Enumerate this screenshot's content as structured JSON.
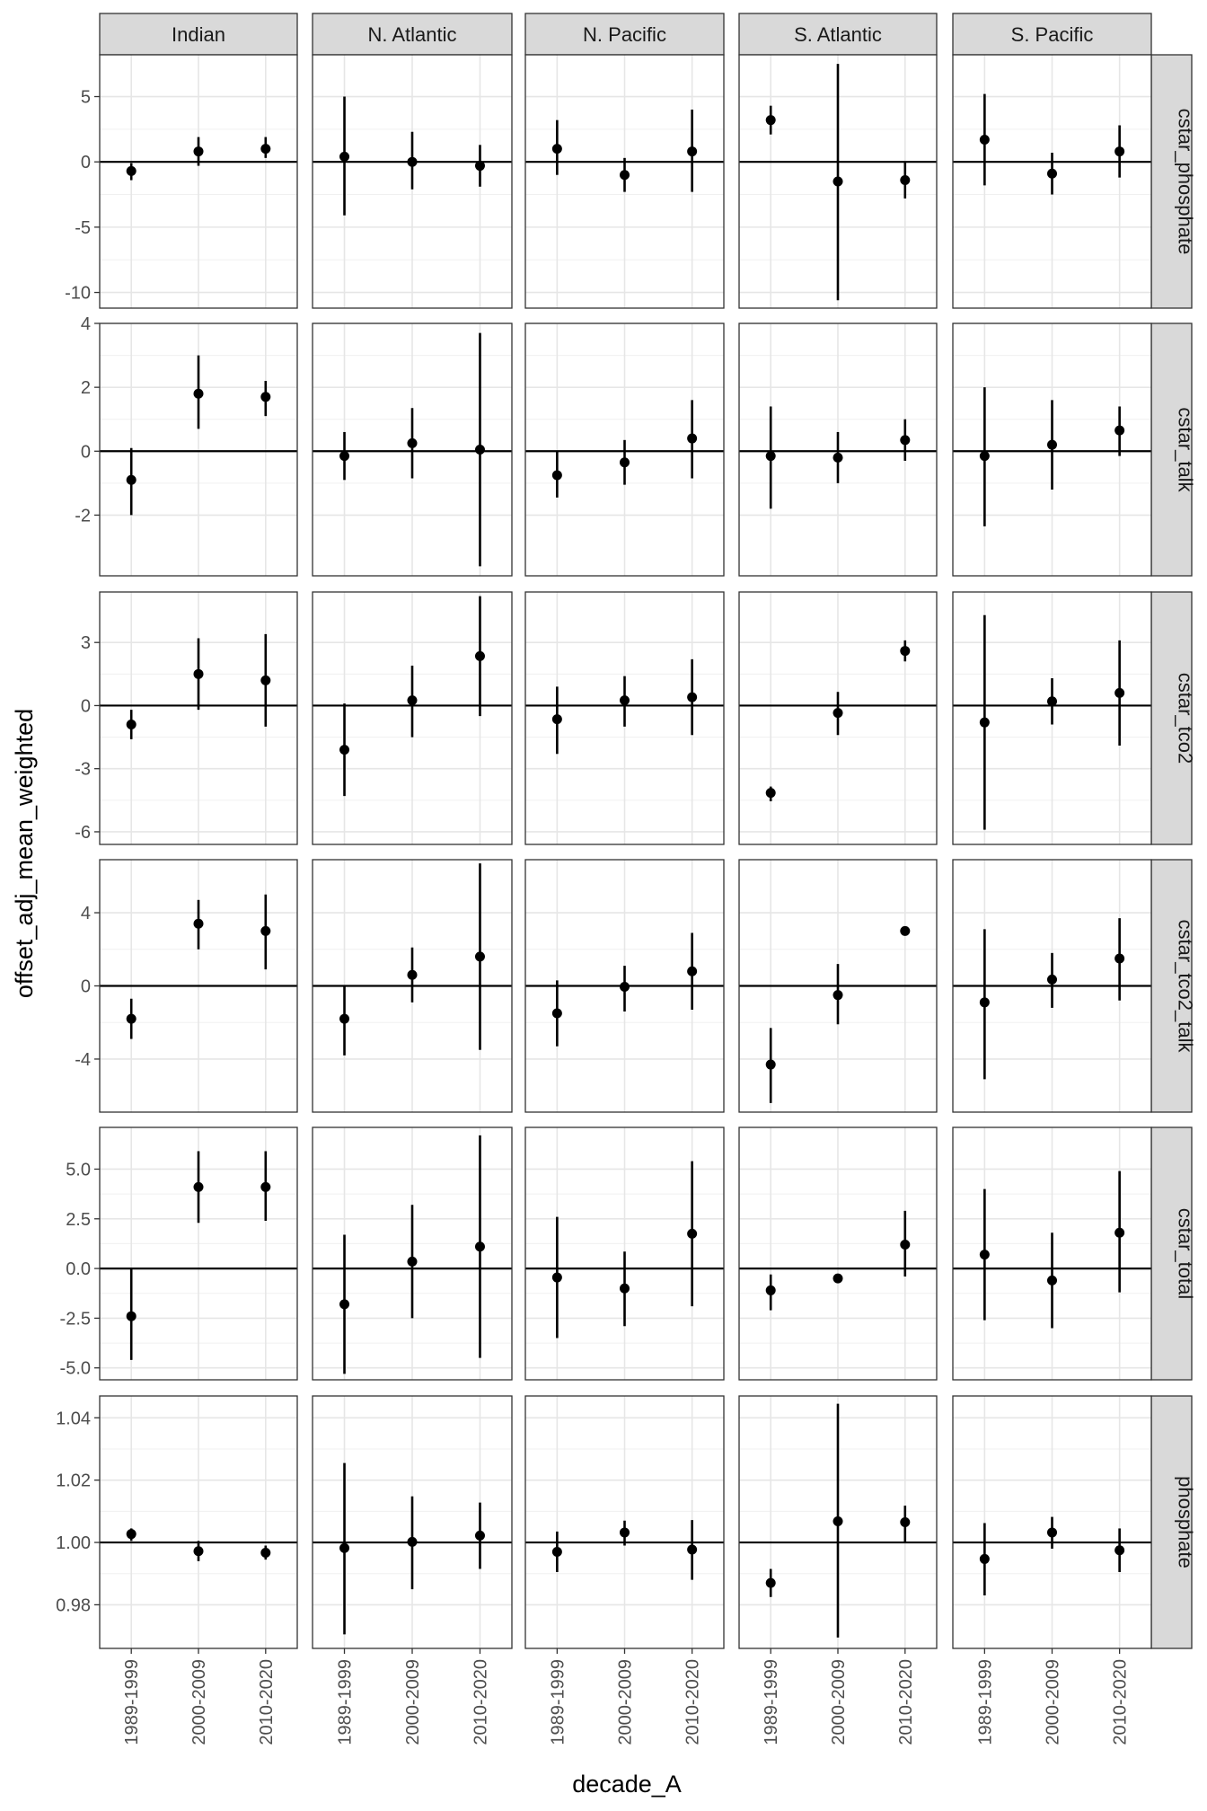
{
  "chart_data": {
    "type": "faceted-pointrange",
    "xlabel": "decade_A",
    "ylabel": "offset_adj_mean_weighted",
    "categories": [
      "1989-1999",
      "2000-2009",
      "2010-2020"
    ],
    "columns": [
      "Indian",
      "N. Atlantic",
      "N. Pacific",
      "S. Atlantic",
      "S. Pacific"
    ],
    "grid": true,
    "reference_line": "horizontal at 0 (rows 1-5) and at 1 (phosphate)",
    "rows": [
      {
        "name": "cstar_phosphate",
        "ylim": [
          -11.2,
          8.2
        ],
        "yticks": [
          -10,
          -5,
          0,
          5
        ],
        "ytick_labels": [
          "-10",
          "-5",
          "0",
          "5"
        ],
        "ref": 0,
        "panels": [
          [
            [
              -0.7,
              -1.4,
              -0.1
            ],
            [
              0.8,
              -0.3,
              1.9
            ],
            [
              1.0,
              0.3,
              1.9
            ]
          ],
          [
            [
              0.4,
              -4.1,
              5.0
            ],
            [
              0.0,
              -2.1,
              2.3
            ],
            [
              -0.3,
              -1.9,
              1.3
            ]
          ],
          [
            [
              1.0,
              -1.0,
              3.2
            ],
            [
              -1.0,
              -2.3,
              0.3
            ],
            [
              0.8,
              -2.3,
              4.0
            ]
          ],
          [
            [
              3.2,
              2.1,
              4.3
            ],
            [
              -1.5,
              -10.6,
              7.5
            ],
            [
              -1.4,
              -2.8,
              0.0
            ]
          ],
          [
            [
              1.7,
              -1.8,
              5.2
            ],
            [
              -0.9,
              -2.5,
              0.7
            ],
            [
              0.8,
              -1.2,
              2.8
            ]
          ]
        ]
      },
      {
        "name": "cstar_talk",
        "ylim": [
          -3.9,
          4.0
        ],
        "yticks": [
          -2,
          0,
          2,
          4
        ],
        "ytick_labels": [
          "-2",
          "0",
          "2",
          "4"
        ],
        "ref": 0,
        "panels": [
          [
            [
              -0.9,
              -2.0,
              0.1
            ],
            [
              1.8,
              0.7,
              3.0
            ],
            [
              1.7,
              1.1,
              2.2
            ]
          ],
          [
            [
              -0.15,
              -0.9,
              0.6
            ],
            [
              0.25,
              -0.85,
              1.35
            ],
            [
              0.05,
              -3.6,
              3.7
            ]
          ],
          [
            [
              -0.75,
              -1.45,
              0.0
            ],
            [
              -0.35,
              -1.05,
              0.35
            ],
            [
              0.4,
              -0.85,
              1.6
            ]
          ],
          [
            [
              -0.15,
              -1.8,
              1.4
            ],
            [
              -0.2,
              -1.0,
              0.6
            ],
            [
              0.35,
              -0.3,
              1.0
            ]
          ],
          [
            [
              -0.15,
              -2.35,
              2.0
            ],
            [
              0.2,
              -1.2,
              1.6
            ],
            [
              0.65,
              -0.15,
              1.4
            ]
          ]
        ]
      },
      {
        "name": "cstar_tco2",
        "ylim": [
          -6.6,
          5.4
        ],
        "yticks": [
          -6,
          -3,
          0,
          3
        ],
        "ytick_labels": [
          "-6",
          "-3",
          "0",
          "3"
        ],
        "ref": 0,
        "panels": [
          [
            [
              -0.9,
              -1.6,
              -0.2
            ],
            [
              1.5,
              -0.2,
              3.2
            ],
            [
              1.2,
              -1.0,
              3.4
            ]
          ],
          [
            [
              -2.1,
              -4.3,
              0.1
            ],
            [
              0.25,
              -1.5,
              1.9
            ],
            [
              2.35,
              -0.5,
              5.2
            ]
          ],
          [
            [
              -0.65,
              -2.3,
              0.9
            ],
            [
              0.25,
              -1.0,
              1.4
            ],
            [
              0.4,
              -1.4,
              2.2
            ]
          ],
          [
            [
              -4.15,
              -4.55,
              -3.85
            ],
            [
              -0.35,
              -1.4,
              0.65
            ],
            [
              2.6,
              2.1,
              3.1
            ]
          ],
          [
            [
              -0.8,
              -5.9,
              4.3
            ],
            [
              0.2,
              -0.9,
              1.3
            ],
            [
              0.6,
              -1.9,
              3.1
            ]
          ]
        ]
      },
      {
        "name": "cstar_tco2_talk",
        "ylim": [
          -6.9,
          6.9
        ],
        "yticks": [
          -4,
          0,
          4
        ],
        "ytick_labels": [
          "-4",
          "0",
          "4"
        ],
        "ref": 0,
        "panels": [
          [
            [
              -1.8,
              -2.9,
              -0.7
            ],
            [
              3.4,
              2.0,
              4.7
            ],
            [
              3.0,
              0.9,
              5.0
            ]
          ],
          [
            [
              -1.8,
              -3.8,
              0.0
            ],
            [
              0.6,
              -0.9,
              2.1
            ],
            [
              1.6,
              -3.5,
              6.7
            ]
          ],
          [
            [
              -1.5,
              -3.3,
              0.3
            ],
            [
              -0.05,
              -1.4,
              1.1
            ],
            [
              0.8,
              -1.3,
              2.9
            ]
          ],
          [
            [
              -4.3,
              -6.4,
              -2.3
            ],
            [
              -0.5,
              -2.1,
              1.2
            ],
            [
              3.0,
              3.0,
              3.0
            ]
          ],
          [
            [
              -0.9,
              -5.1,
              3.1
            ],
            [
              0.35,
              -1.2,
              1.8
            ],
            [
              1.5,
              -0.8,
              3.7
            ]
          ]
        ]
      },
      {
        "name": "cstar_total",
        "ylim": [
          -5.6,
          7.1
        ],
        "yticks": [
          -5,
          -2.5,
          0,
          2.5,
          5
        ],
        "ytick_labels": [
          "-5.0",
          "-2.5",
          "0.0",
          "2.5",
          "5.0"
        ],
        "ref": 0,
        "panels": [
          [
            [
              -2.4,
              -4.6,
              0.0
            ],
            [
              4.1,
              2.3,
              5.9
            ],
            [
              4.1,
              2.4,
              5.9
            ]
          ],
          [
            [
              -1.8,
              -5.3,
              1.7
            ],
            [
              0.35,
              -2.5,
              3.2
            ],
            [
              1.1,
              -4.5,
              6.7
            ]
          ],
          [
            [
              -0.45,
              -3.5,
              2.6
            ],
            [
              -1.0,
              -2.9,
              0.85
            ],
            [
              1.75,
              -1.9,
              5.4
            ]
          ],
          [
            [
              -1.1,
              -2.1,
              -0.3
            ],
            [
              -0.5,
              -0.5,
              -0.5
            ],
            [
              1.2,
              -0.4,
              2.9
            ]
          ],
          [
            [
              0.7,
              -2.6,
              4.0
            ],
            [
              -0.6,
              -3.0,
              1.8
            ],
            [
              1.8,
              -1.2,
              4.9
            ]
          ]
        ]
      },
      {
        "name": "phosphate",
        "ylim": [
          0.966,
          1.047
        ],
        "yticks": [
          0.98,
          1.0,
          1.02,
          1.04
        ],
        "ytick_labels": [
          "0.98",
          "1.00",
          "1.02",
          "1.04"
        ],
        "ref": 1,
        "panels": [
          [
            [
              1.0027,
              1.0005,
              1.0045
            ],
            [
              0.9972,
              0.994,
              1.0005
            ],
            [
              0.9967,
              0.9945,
              0.999
            ]
          ],
          [
            [
              0.9982,
              0.9705,
              1.0255
            ],
            [
              1.0002,
              0.985,
              1.0148
            ],
            [
              1.0022,
              0.9915,
              1.0128
            ]
          ],
          [
            [
              0.997,
              0.9905,
              1.0035
            ],
            [
              1.0032,
              0.999,
              1.007
            ],
            [
              0.9977,
              0.988,
              1.0072
            ]
          ],
          [
            [
              0.987,
              0.9825,
              0.9915
            ],
            [
              1.0068,
              0.9695,
              1.0445
            ],
            [
              1.0065,
              1.0,
              1.0118
            ]
          ],
          [
            [
              0.9947,
              0.983,
              1.0062
            ],
            [
              1.0032,
              0.998,
              1.0082
            ],
            [
              0.9975,
              0.9905,
              1.0045
            ]
          ]
        ]
      }
    ]
  }
}
